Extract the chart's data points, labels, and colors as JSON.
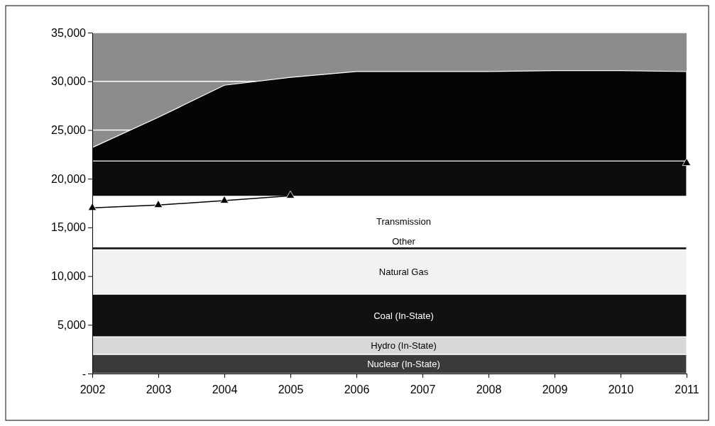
{
  "chart_data": {
    "type": "area",
    "stacked": true,
    "x": [
      2002,
      2003,
      2004,
      2005,
      2006,
      2007,
      2008,
      2009,
      2010,
      2011
    ],
    "xlim": [
      2002,
      2011
    ],
    "xticks": [
      2002,
      2003,
      2004,
      2005,
      2006,
      2007,
      2008,
      2009,
      2010,
      2011
    ],
    "ylim": [
      0,
      35000
    ],
    "yticks": [
      {
        "value": 0,
        "label": "-"
      },
      {
        "value": 5000,
        "label": "5,000"
      },
      {
        "value": 10000,
        "label": "10,000"
      },
      {
        "value": 15000,
        "label": "15,000"
      },
      {
        "value": 20000,
        "label": "20,000"
      },
      {
        "value": 25000,
        "label": "25,000"
      },
      {
        "value": 30000,
        "label": "30,000"
      },
      {
        "value": 35000,
        "label": "35,000"
      }
    ],
    "grid": "y",
    "series": [
      {
        "name": "Nuclear (In-State)",
        "color": "#3a3a3a",
        "values": [
          1970,
          1970,
          1970,
          1970,
          1970,
          1970,
          1970,
          1970,
          1970,
          1970
        ]
      },
      {
        "name": "Hydro (In-State)",
        "color": "#d8d8d8",
        "values": [
          1810,
          1810,
          1810,
          1810,
          1810,
          1810,
          1810,
          1810,
          1810,
          1810
        ]
      },
      {
        "name": "Coal (In-State)",
        "color": "#111111",
        "values": [
          4370,
          4370,
          4370,
          4370,
          4370,
          4370,
          4370,
          4370,
          4370,
          4370
        ]
      },
      {
        "name": "Natural Gas",
        "color": "#f2f2f2",
        "values": [
          4550,
          4550,
          4550,
          4550,
          4550,
          4550,
          4550,
          4550,
          4550,
          4550
        ]
      },
      {
        "name": "Other",
        "color": "#1a1a1a",
        "values": [
          300,
          300,
          300,
          300,
          300,
          300,
          300,
          300,
          300,
          300
        ]
      },
      {
        "name": "Transmission",
        "color": "#ffffff",
        "values": [
          5200,
          5200,
          5200,
          5200,
          5200,
          5200,
          5200,
          5200,
          5200,
          5200
        ]
      },
      {
        "color": "#0d0d0d",
        "values": [
          3630,
          3630,
          3630,
          3630,
          3630,
          3630,
          3630,
          3630,
          3630,
          3630
        ]
      },
      {
        "color": "#050505",
        "values": [
          1370,
          4470,
          7770,
          8570,
          9170,
          9170,
          9170,
          9270,
          9270,
          9170
        ]
      },
      {
        "type": "line",
        "marker": "triangle",
        "line_style": "solid",
        "color": "#000000",
        "values": [
          17000,
          17300,
          17750,
          18250,
          null,
          null,
          null,
          null,
          null,
          21600
        ]
      }
    ]
  }
}
